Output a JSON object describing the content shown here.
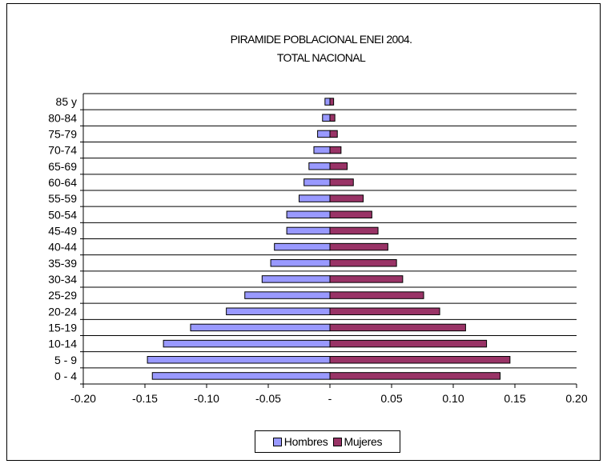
{
  "chart_data": {
    "type": "bar",
    "orientation": "horizontal",
    "title": [
      "PIRAMIDE POBLACIONAL ENEI 2004.",
      "TOTAL NACIONAL"
    ],
    "categories": [
      "0 - 4",
      "5 - 9",
      "10-14",
      "15-19",
      "20-24",
      "25-29",
      "30-34",
      "35-39",
      "40-44",
      "45-49",
      "50-54",
      "55-59",
      "60-64",
      "65-69",
      "70-74",
      "75-79",
      "80-84",
      "85 y"
    ],
    "series": [
      {
        "name": "Hombres",
        "color": "#9999FF",
        "values": [
          -0.144,
          -0.148,
          -0.135,
          -0.113,
          -0.084,
          -0.069,
          -0.055,
          -0.048,
          -0.045,
          -0.035,
          -0.035,
          -0.025,
          -0.021,
          -0.017,
          -0.013,
          -0.01,
          -0.006,
          -0.004
        ]
      },
      {
        "name": "Mujeres",
        "color": "#993366",
        "values": [
          0.138,
          0.146,
          0.127,
          0.11,
          0.089,
          0.076,
          0.059,
          0.054,
          0.047,
          0.039,
          0.034,
          0.027,
          0.019,
          0.014,
          0.009,
          0.006,
          0.004,
          0.003
        ]
      }
    ],
    "xlim": [
      -0.2,
      0.2
    ],
    "xticks": [
      -0.2,
      -0.15,
      -0.1,
      -0.05,
      0,
      0.05,
      0.1,
      0.15,
      0.2
    ],
    "xtick_labels": [
      "-0.20",
      "-0.15",
      "-0.10",
      "-0.05",
      "-",
      "0.05",
      "0.10",
      "0.15",
      "0.20"
    ],
    "grid": "horizontal",
    "legend_position": "bottom"
  }
}
